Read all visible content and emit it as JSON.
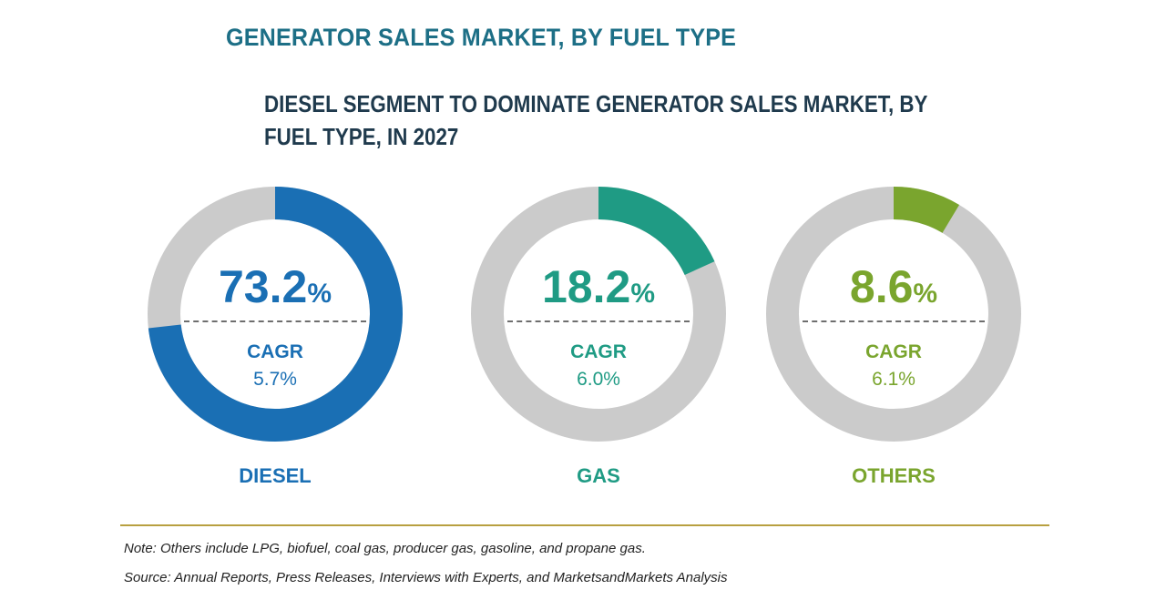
{
  "chart_data": {
    "type": "pie",
    "title": "GENERATOR SALES MARKET, BY FUEL TYPE",
    "subtitle": "DIESEL SEGMENT TO DOMINATE GENERATOR SALES MARKET, BY FUEL TYPE, IN 2027",
    "unit": "%",
    "cagr_label": "CAGR",
    "segments": [
      {
        "name": "DIESEL",
        "share": 73.2,
        "share_text": "73.2",
        "cagr": "5.7%",
        "color": "#1a6fb4"
      },
      {
        "name": "GAS",
        "share": 18.2,
        "share_text": "18.2",
        "cagr": "6.0%",
        "color": "#1f9b84"
      },
      {
        "name": "OTHERS",
        "share": 8.6,
        "share_text": "8.6",
        "cagr": "6.1%",
        "color": "#7aa52e"
      }
    ],
    "track_color": "#cbcbcb"
  },
  "footer": {
    "note": "Note: Others include LPG, biofuel, coal gas, producer gas, gasoline, and propane gas.",
    "source": "Source: Annual Reports, Press Releases, Interviews with Experts, and MarketsandMarkets Analysis"
  }
}
